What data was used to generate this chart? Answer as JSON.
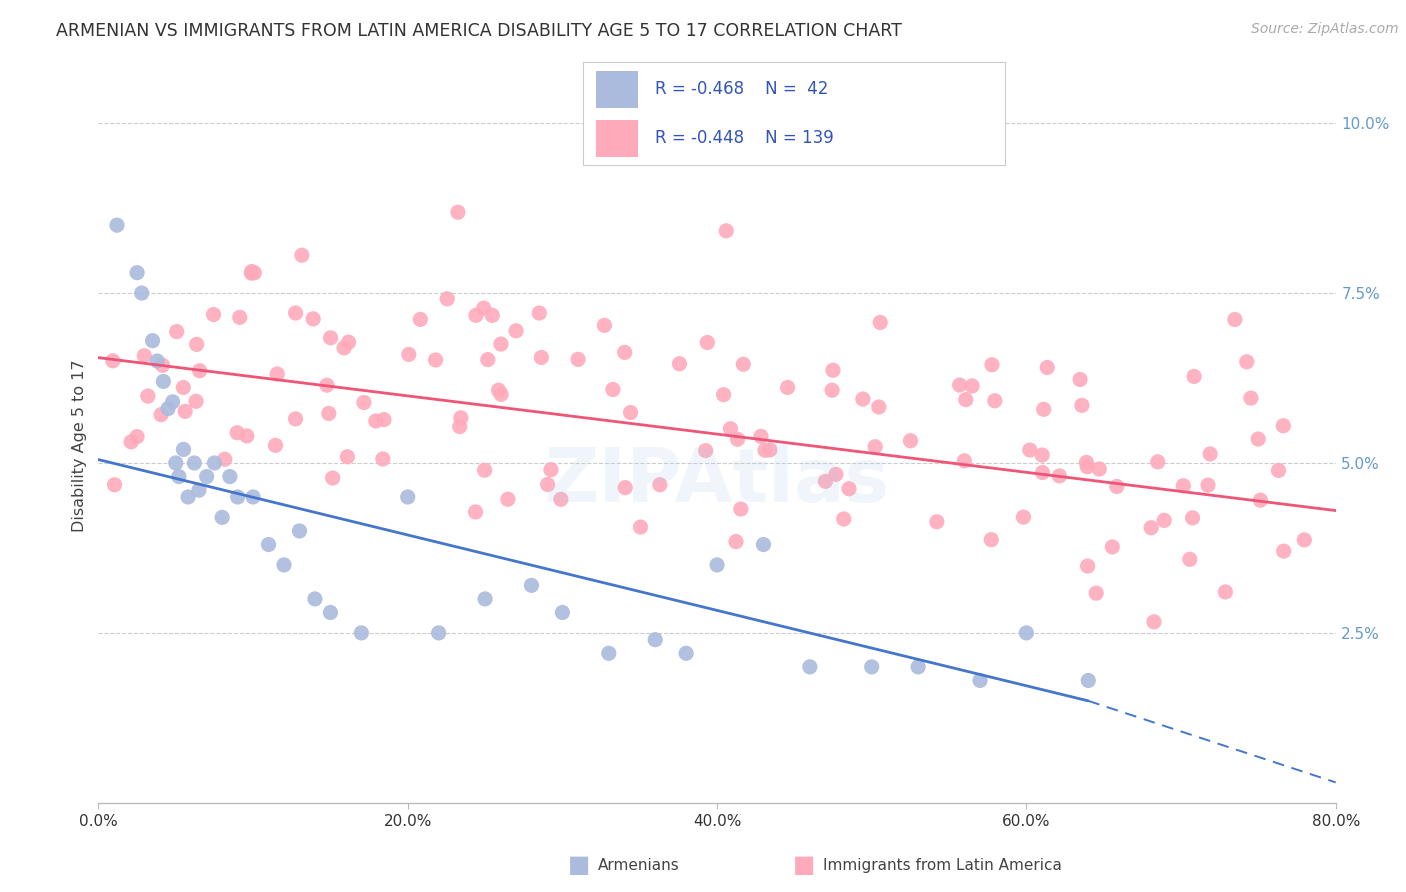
{
  "title": "ARMENIAN VS IMMIGRANTS FROM LATIN AMERICA DISABILITY AGE 5 TO 17 CORRELATION CHART",
  "source": "Source: ZipAtlas.com",
  "ylabel": "Disability Age 5 to 17",
  "xlim": [
    0,
    80
  ],
  "ylim": [
    0,
    10.5
  ],
  "xtick_vals": [
    0.0,
    20.0,
    40.0,
    60.0,
    80.0
  ],
  "ytick_vals": [
    2.5,
    5.0,
    7.5,
    10.0
  ],
  "legend_r_blue": "R = -0.468",
  "legend_n_blue": "N =  42",
  "legend_r_pink": "R = -0.448",
  "legend_n_pink": "N = 139",
  "legend_label_blue": "Armenians",
  "legend_label_pink": "Immigrants from Latin America",
  "blue_scatter_color": "#AABBDD",
  "pink_scatter_color": "#FFAABB",
  "blue_line_color": "#4477CC",
  "pink_line_color": "#EE5577",
  "legend_text_color": "#3355BB",
  "title_color": "#333333",
  "source_color": "#AAAAAA",
  "ytick_color": "#6699CC",
  "xtick_color": "#333333",
  "blue_x": [
    1.2,
    2.5,
    2.8,
    3.5,
    3.8,
    4.2,
    4.5,
    4.8,
    5.0,
    5.2,
    5.5,
    5.8,
    6.2,
    6.5,
    7.0,
    7.5,
    8.0,
    8.5,
    9.0,
    10.0,
    11.0,
    12.0,
    13.0,
    14.0,
    15.0,
    17.0,
    20.0,
    22.0,
    25.0,
    28.0,
    30.0,
    33.0,
    36.0,
    38.0,
    40.0,
    43.0,
    46.0,
    50.0,
    53.0,
    57.0,
    60.0,
    64.0
  ],
  "blue_y": [
    8.5,
    7.8,
    7.5,
    6.8,
    6.5,
    6.2,
    5.8,
    5.9,
    5.0,
    4.8,
    5.2,
    4.5,
    5.0,
    4.6,
    4.8,
    5.0,
    4.2,
    4.8,
    4.5,
    4.5,
    3.8,
    3.5,
    4.0,
    3.0,
    2.8,
    2.5,
    4.5,
    2.5,
    3.0,
    3.2,
    2.8,
    2.2,
    2.4,
    2.2,
    3.5,
    3.8,
    2.0,
    2.0,
    2.0,
    1.8,
    2.5,
    1.8
  ],
  "blue_reg_x0": 0,
  "blue_reg_x1": 64,
  "blue_reg_y0": 5.05,
  "blue_reg_y1": 1.5,
  "blue_dash_x0": 64,
  "blue_dash_x1": 80,
  "blue_dash_y0": 1.5,
  "blue_dash_y1": 0.3,
  "pink_reg_x0": 0,
  "pink_reg_x1": 80,
  "pink_reg_y0": 6.55,
  "pink_reg_y1": 4.3,
  "pink_seed": 42,
  "pink_n": 139,
  "pink_noise_std": 1.1
}
